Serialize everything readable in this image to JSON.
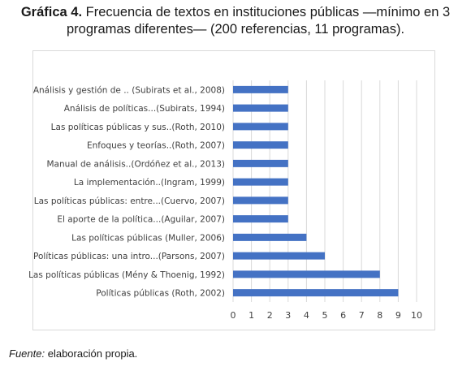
{
  "caption": {
    "label": "Gráfica 4.",
    "text_line1": "Frecuencia de textos en instituciones públicas —mínimo en 3",
    "text_line2": "programas diferentes— (200 referencias, 11 programas)."
  },
  "source": {
    "label": "Fuente:",
    "text": "elaboración propia."
  },
  "colors": {
    "bar": "#4472c4",
    "grid": "#d9d9d9",
    "text": "#404040"
  },
  "chart_data": {
    "type": "bar",
    "orientation": "horizontal",
    "categories": [
      "Análisis y gestión de .. (Subirats et al., 2008)",
      "Análisis de políticas...(Subirats, 1994)",
      "Las políticas públicas y sus..(Roth, 2010)",
      "Enfoques y teorías..(Roth, 2007)",
      "Manual de análisis..(Ordóñez et al., 2013)",
      "La implementación..(Ingram, 1999)",
      "Las políticas públicas: entre...(Cuervo, 2007)",
      "El aporte de la política...(Aguilar, 2007)",
      "Las políticas públicas (Muller, 2006)",
      "Políticas públicas: una intro...(Parsons, 2007)",
      "Las políticas públicas (Mény & Thoenig, 1992)",
      "Políticas públicas (Roth, 2002)"
    ],
    "values": [
      3,
      3,
      3,
      3,
      3,
      3,
      3,
      3,
      4,
      5,
      8,
      9
    ],
    "xlim": [
      0,
      10
    ],
    "xticks": [
      "0",
      "1",
      "2",
      "3",
      "4",
      "5",
      "6",
      "7",
      "8",
      "9",
      "10"
    ],
    "grid": true,
    "legend": "none",
    "title": "",
    "xlabel": "",
    "ylabel": ""
  }
}
